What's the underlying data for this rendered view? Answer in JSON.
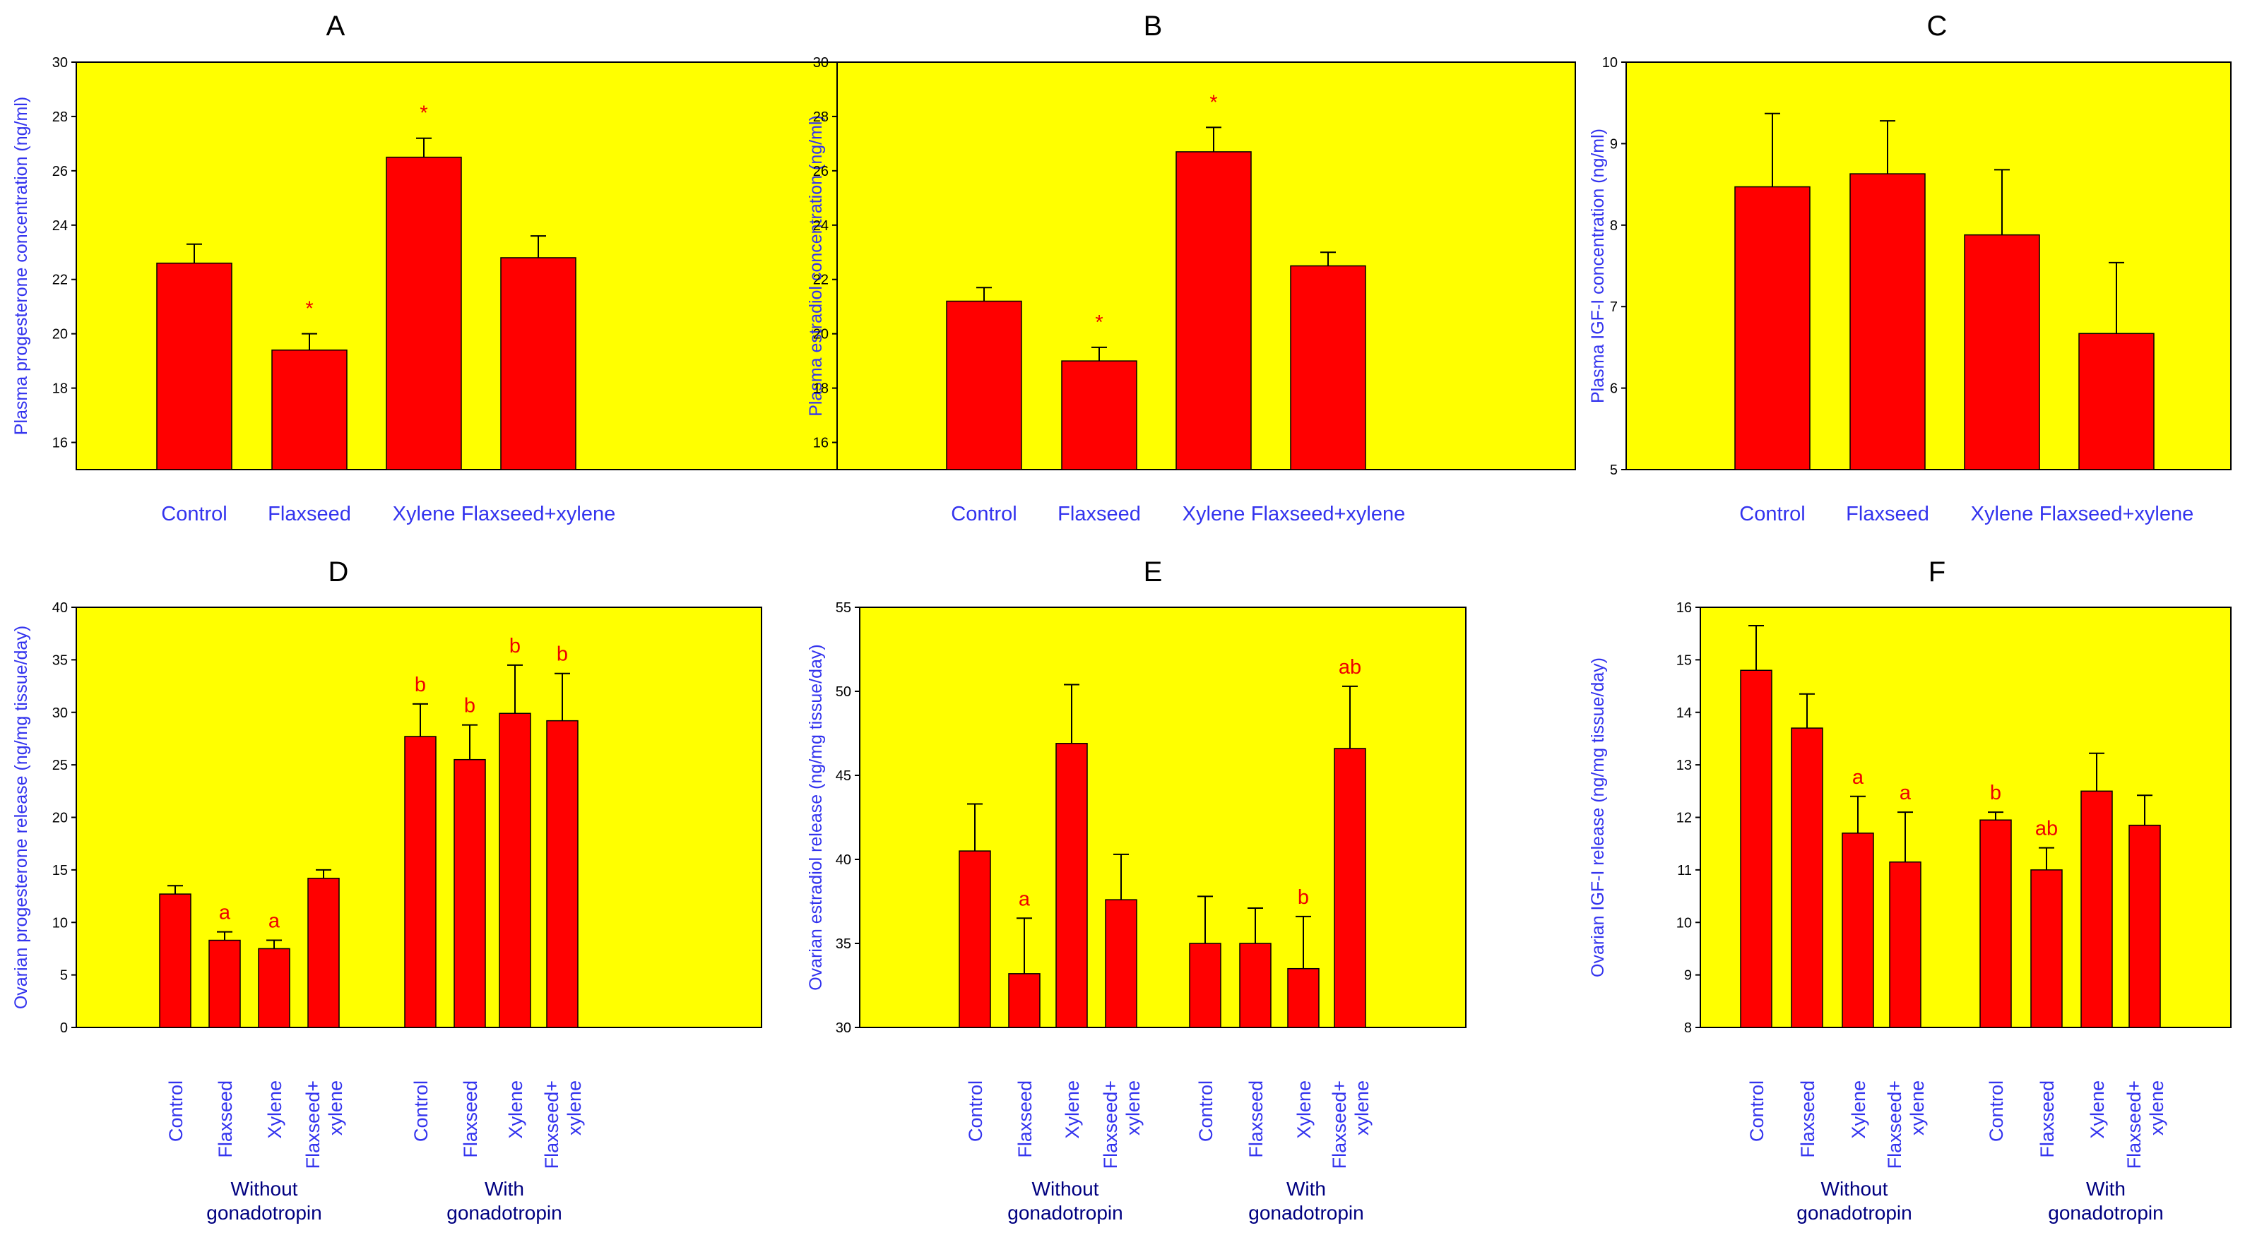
{
  "chart_data": [
    {
      "id": "A",
      "type": "bar",
      "title": "A",
      "ylabel": "Plasma progesterone concentration (ng/ml)",
      "ylim": [
        15,
        30
      ],
      "yticks": [
        16,
        18,
        20,
        22,
        24,
        26,
        28,
        30
      ],
      "categories": [
        "Control",
        "Flaxseed",
        "Xylene",
        "Flaxseed+xylene"
      ],
      "values": [
        22.6,
        19.4,
        26.5,
        22.8
      ],
      "errors": [
        0.7,
        0.6,
        0.7,
        0.8
      ],
      "annotations": [
        "",
        "*",
        "*",
        ""
      ]
    },
    {
      "id": "B",
      "type": "bar",
      "title": "B",
      "ylabel": "Plasma estradiol concentration (ng/ml)",
      "ylim": [
        15,
        30
      ],
      "yticks": [
        16,
        18,
        20,
        22,
        24,
        26,
        28,
        30
      ],
      "categories": [
        "Control",
        "Flaxseed",
        "Xylene",
        "Flaxseed+xylene"
      ],
      "values": [
        21.2,
        19.0,
        26.7,
        22.5
      ],
      "errors": [
        0.5,
        0.5,
        0.9,
        0.5
      ],
      "annotations": [
        "",
        "*",
        "*",
        ""
      ]
    },
    {
      "id": "C",
      "type": "bar",
      "title": "C",
      "ylabel": "Plasma IGF-I concentration (ng/ml)",
      "ylim": [
        5,
        10
      ],
      "yticks": [
        5,
        6,
        7,
        8,
        9,
        10
      ],
      "categories": [
        "Control",
        "Flaxseed",
        "Xylene",
        "Flaxseed+xylene"
      ],
      "values": [
        8.47,
        8.63,
        7.88,
        6.67
      ],
      "errors": [
        0.9,
        0.65,
        0.8,
        0.87
      ],
      "annotations": [
        "",
        "",
        "",
        ""
      ]
    },
    {
      "id": "D",
      "type": "bar",
      "title": "D",
      "ylabel": "Ovarian progesterone release (ng/mg tissue/day)",
      "ylim": [
        0,
        40
      ],
      "yticks": [
        0,
        5,
        10,
        15,
        20,
        25,
        30,
        35,
        40
      ],
      "groups": [
        {
          "label": [
            "Without",
            "gonadotropin"
          ],
          "categories": [
            [
              "Control"
            ],
            [
              "Flaxseed"
            ],
            [
              "Xylene"
            ],
            [
              "Flaxseed+",
              "xylene"
            ]
          ],
          "values": [
            12.7,
            8.3,
            7.5,
            14.2
          ],
          "errors": [
            0.8,
            0.8,
            0.8,
            0.8
          ],
          "annotations": [
            "",
            "a",
            "a",
            ""
          ]
        },
        {
          "label": [
            "With",
            "gonadotropin"
          ],
          "categories": [
            [
              "Control"
            ],
            [
              "Flaxseed"
            ],
            [
              "Xylene"
            ],
            [
              "Flaxseed+",
              "xylene"
            ]
          ],
          "values": [
            27.7,
            25.5,
            29.9,
            29.2
          ],
          "errors": [
            3.1,
            3.3,
            4.6,
            4.5
          ],
          "annotations": [
            "b",
            "b",
            "b",
            "b"
          ]
        }
      ]
    },
    {
      "id": "E",
      "type": "bar",
      "title": "E",
      "ylabel": "Ovarian estradiol release (ng/mg tissue/day)",
      "ylim": [
        30,
        55
      ],
      "yticks": [
        30,
        35,
        40,
        45,
        50,
        55
      ],
      "groups": [
        {
          "label": [
            "Without",
            "gonadotropin"
          ],
          "categories": [
            [
              "Control"
            ],
            [
              "Flaxseed"
            ],
            [
              "Xylene"
            ],
            [
              "Flaxseed+",
              "xylene"
            ]
          ],
          "values": [
            40.5,
            33.2,
            46.9,
            37.6
          ],
          "errors": [
            2.8,
            3.3,
            3.5,
            2.7
          ],
          "annotations": [
            "",
            "a",
            "",
            ""
          ]
        },
        {
          "label": [
            "With",
            "gonadotropin"
          ],
          "categories": [
            [
              "Control"
            ],
            [
              "Flaxseed"
            ],
            [
              "Xylene"
            ],
            [
              "Flaxseed+",
              "xylene"
            ]
          ],
          "values": [
            35.0,
            35.0,
            33.5,
            46.6
          ],
          "errors": [
            2.8,
            2.1,
            3.1,
            3.7
          ],
          "annotations": [
            "",
            "",
            "b",
            "ab"
          ]
        }
      ]
    },
    {
      "id": "F",
      "type": "bar",
      "title": "F",
      "ylabel": "Ovarian IGF-I release (ng/mg tissue/day)",
      "ylim": [
        8,
        16
      ],
      "yticks": [
        8,
        9,
        10,
        11,
        12,
        13,
        14,
        15,
        16
      ],
      "groups": [
        {
          "label": [
            "Without",
            "gonadotropin"
          ],
          "categories": [
            [
              "Control"
            ],
            [
              "Flaxseed"
            ],
            [
              "Xylene"
            ],
            [
              "Flaxseed+",
              "xylene"
            ]
          ],
          "values": [
            14.8,
            13.7,
            11.7,
            11.15
          ],
          "errors": [
            0.85,
            0.65,
            0.7,
            0.95
          ],
          "annotations": [
            "",
            "",
            "a",
            "a"
          ]
        },
        {
          "label": [
            "With",
            "gonadotropin"
          ],
          "categories": [
            [
              "Control"
            ],
            [
              "Flaxseed"
            ],
            [
              "Xylene"
            ],
            [
              "Flaxseed+",
              "xylene"
            ]
          ],
          "values": [
            11.95,
            11.0,
            12.5,
            11.85
          ],
          "errors": [
            0.15,
            0.42,
            0.72,
            0.57
          ],
          "annotations": [
            "b",
            "ab",
            "",
            ""
          ]
        }
      ]
    }
  ],
  "colors": {
    "plot_bg": "#ffff00",
    "bar": "#ff0000",
    "label": "#3333ee",
    "annotation": "#ee0000",
    "group_label": "#000080"
  }
}
